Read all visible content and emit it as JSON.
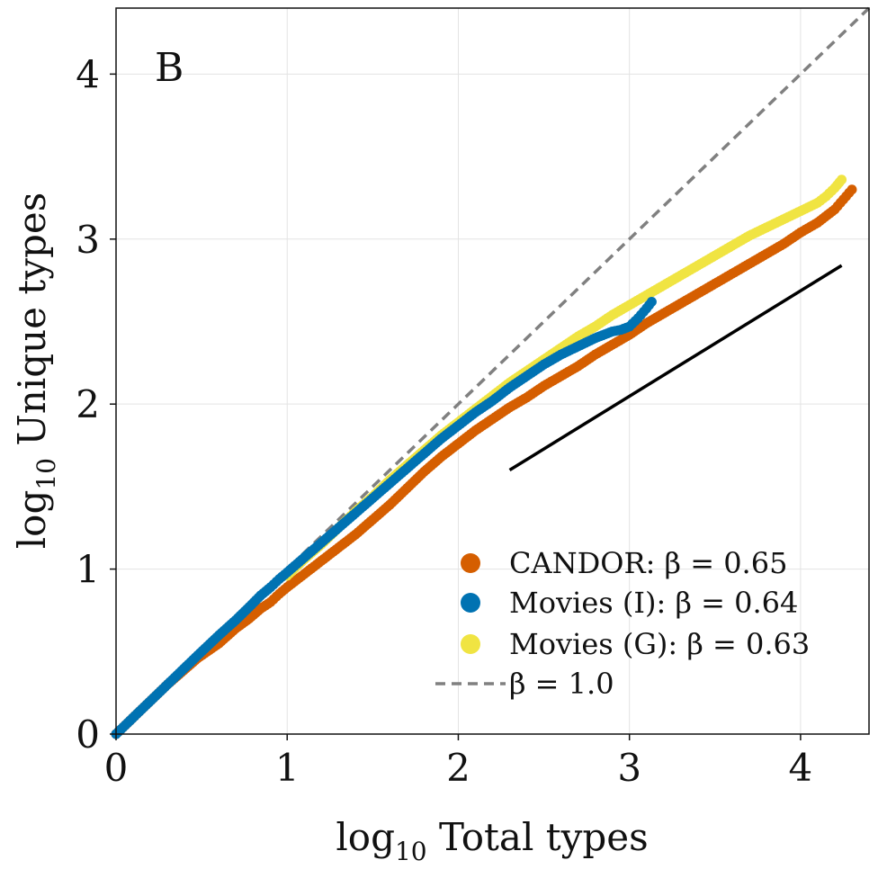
{
  "chart_data": {
    "type": "scatter",
    "panel_label": "B",
    "xlabel": {
      "prefix": "log",
      "subscript": "10",
      "text": "Total types"
    },
    "ylabel": {
      "prefix": "log",
      "subscript": "10",
      "text": "Unique types"
    },
    "xlim": [
      0,
      4.4
    ],
    "ylim": [
      0,
      4.4
    ],
    "xticks": [
      0,
      1,
      2,
      3,
      4
    ],
    "yticks": [
      0,
      1,
      2,
      3,
      4
    ],
    "grid": true,
    "legend_position": "bottom-right",
    "colors": {
      "candor": "#d55e00",
      "movies_i": "#0072b2",
      "movies_g": "#f0e442",
      "reference": "#808080",
      "slope_line": "#000000"
    },
    "series": [
      {
        "name": "CANDOR",
        "legend": "CANDOR: β = 0.65",
        "color": "#d55e00",
        "x": [
          0.0,
          0.301,
          0.477,
          0.602,
          0.699,
          0.778,
          0.845,
          0.903,
          0.954,
          1.0,
          1.1,
          1.2,
          1.3,
          1.4,
          1.5,
          1.6,
          1.7,
          1.8,
          1.9,
          2.0,
          2.1,
          2.2,
          2.3,
          2.4,
          2.5,
          2.6,
          2.7,
          2.8,
          2.9,
          3.0,
          3.1,
          3.2,
          3.3,
          3.4,
          3.5,
          3.6,
          3.7,
          3.8,
          3.9,
          4.0,
          4.1,
          4.2,
          4.25,
          4.3
        ],
        "y": [
          0.0,
          0.301,
          0.46,
          0.55,
          0.64,
          0.7,
          0.76,
          0.8,
          0.85,
          0.89,
          0.97,
          1.05,
          1.13,
          1.21,
          1.3,
          1.39,
          1.49,
          1.59,
          1.68,
          1.76,
          1.84,
          1.91,
          1.98,
          2.04,
          2.11,
          2.17,
          2.23,
          2.3,
          2.36,
          2.42,
          2.49,
          2.55,
          2.61,
          2.67,
          2.73,
          2.79,
          2.85,
          2.91,
          2.97,
          3.04,
          3.1,
          3.18,
          3.24,
          3.3
        ]
      },
      {
        "name": "Movies (G)",
        "legend": "Movies (G): β = 0.63",
        "color": "#f0e442",
        "x": [
          1.0,
          1.1,
          1.2,
          1.3,
          1.4,
          1.5,
          1.6,
          1.7,
          1.8,
          1.9,
          2.0,
          2.1,
          2.2,
          2.3,
          2.4,
          2.5,
          2.6,
          2.7,
          2.8,
          2.9,
          3.0,
          3.1,
          3.2,
          3.3,
          3.4,
          3.5,
          3.6,
          3.7,
          3.8,
          3.9,
          4.0,
          4.1,
          4.15,
          4.2,
          4.24
        ],
        "y": [
          0.96,
          1.06,
          1.15,
          1.25,
          1.35,
          1.44,
          1.54,
          1.63,
          1.72,
          1.81,
          1.89,
          1.97,
          2.05,
          2.13,
          2.2,
          2.27,
          2.34,
          2.41,
          2.47,
          2.54,
          2.6,
          2.66,
          2.72,
          2.78,
          2.84,
          2.9,
          2.96,
          3.02,
          3.07,
          3.12,
          3.17,
          3.22,
          3.26,
          3.31,
          3.36
        ]
      },
      {
        "name": "Movies (I)",
        "legend": "Movies (I): β = 0.64",
        "color": "#0072b2",
        "x": [
          0.0,
          0.301,
          0.477,
          0.602,
          0.699,
          0.778,
          0.845,
          0.903,
          0.954,
          1.0,
          1.1,
          1.2,
          1.3,
          1.4,
          1.5,
          1.6,
          1.7,
          1.8,
          1.9,
          2.0,
          2.1,
          2.2,
          2.3,
          2.4,
          2.5,
          2.6,
          2.7,
          2.8,
          2.9,
          2.95,
          3.0,
          3.05,
          3.1,
          3.13
        ],
        "y": [
          0.0,
          0.301,
          0.477,
          0.6,
          0.69,
          0.77,
          0.84,
          0.89,
          0.94,
          0.98,
          1.07,
          1.16,
          1.25,
          1.34,
          1.43,
          1.52,
          1.61,
          1.7,
          1.79,
          1.87,
          1.95,
          2.02,
          2.1,
          2.17,
          2.24,
          2.3,
          2.35,
          2.4,
          2.44,
          2.45,
          2.47,
          2.52,
          2.58,
          2.62
        ]
      }
    ],
    "reference_line": {
      "legend": "β = 1.0",
      "slope": 1.0,
      "x": [
        0,
        4.4
      ],
      "y": [
        0,
        4.4
      ]
    },
    "slope_line": {
      "x": [
        2.3,
        4.24
      ],
      "y": [
        1.6,
        2.84
      ]
    }
  }
}
